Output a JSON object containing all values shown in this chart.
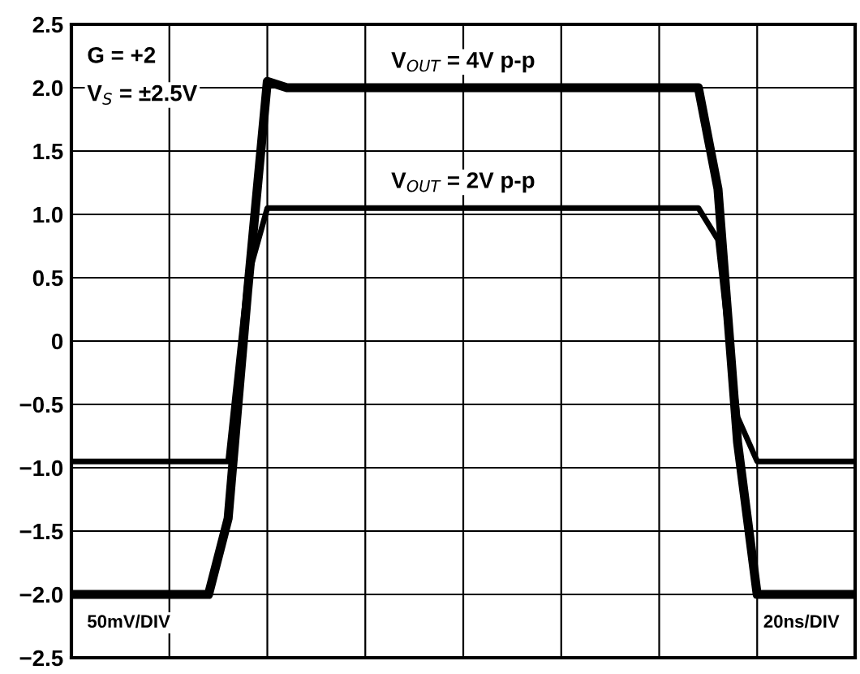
{
  "chart_data": {
    "type": "line",
    "categories": [
      null,
      null,
      null,
      null,
      null,
      null,
      null,
      null,
      null,
      null,
      null,
      null,
      null,
      null,
      null,
      null,
      null,
      null,
      null,
      null,
      null,
      null,
      null,
      null,
      null,
      null,
      null,
      null,
      null,
      null,
      null,
      null,
      null,
      null,
      null,
      null,
      null,
      null,
      null,
      null,
      null
    ],
    "series": [
      {
        "name": "V$_{OUT}$ = 4V p-p",
        "color": "#000000",
        "values": [
          -2.0,
          -2.0,
          -2.0,
          -2.0,
          -2.0,
          -2.0,
          -2.0,
          -2.0,
          -1.4,
          0.4,
          2.05,
          2.0,
          2.0,
          2.0,
          2.0,
          2.0,
          2.0,
          2.0,
          2.0,
          2.0,
          2.0,
          2.0,
          2.0,
          2.0,
          2.0,
          2.0,
          2.0,
          2.0,
          2.0,
          2.0,
          2.0,
          2.0,
          2.0,
          1.2,
          -0.8,
          -2.0,
          -2.0,
          -2.0,
          -2.0,
          -2.0,
          -2.0
        ]
      },
      {
        "name": "V$_{OUT}$ = 2V p-p",
        "color": "#000000",
        "values": [
          -0.95,
          -0.95,
          -0.95,
          -0.95,
          -0.95,
          -0.95,
          -0.95,
          -0.95,
          -0.95,
          0.5,
          1.05,
          1.05,
          1.05,
          1.05,
          1.05,
          1.05,
          1.05,
          1.05,
          1.05,
          1.05,
          1.05,
          1.05,
          1.05,
          1.05,
          1.05,
          1.05,
          1.05,
          1.05,
          1.05,
          1.05,
          1.05,
          1.05,
          1.05,
          0.8,
          -0.6,
          -0.95,
          -0.95,
          -0.95,
          -0.95,
          -0.95,
          -0.95
        ]
      }
    ],
    "ylim": [
      -2.5,
      2.5
    ],
    "yticks": [
      {
        "value": -2.5,
        "label": "−2.5"
      },
      {
        "value": -2.0,
        "label": "−2.0"
      },
      {
        "value": -1.5,
        "label": "−1.5"
      },
      {
        "value": -1.0,
        "label": "−1.0"
      },
      {
        "value": -0.5,
        "label": "−0.5"
      },
      0,
      0.5,
      {
        "value": 1.0,
        "label": "1.0"
      },
      1.5,
      {
        "value": 2.0,
        "label": "2.0"
      },
      2.5
    ],
    "annotations": [
      "G = +2",
      "V$_{S}$ = ±2.5V",
      "50mV/DIV",
      "20ns/DIV"
    ],
    "grid": true,
    "tick_labels": "y",
    "legend": false
  }
}
